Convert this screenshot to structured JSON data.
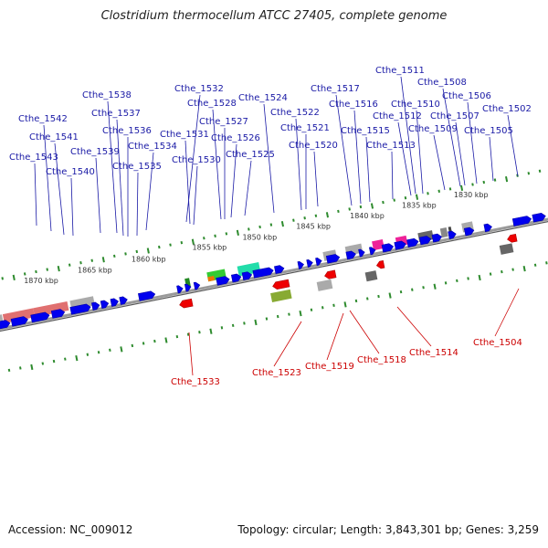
{
  "title": "Clostridium thermocellum ATCC 27405, complete genome",
  "footer": {
    "accession": "Accession: NC_009012",
    "summary": "Topology: circular; Length: 3,843,301 bp; Genes: 3,259"
  },
  "colors": {
    "upper_label": "#1a1aa6",
    "lower_label": "#cc0000",
    "forward_gene": "#0000ee",
    "reverse_gene": "#ee0000",
    "backbone": "#888888",
    "tick": "#2e8b2e"
  },
  "scale_labels": [
    "1870 kbp",
    "1865 kbp",
    "1860 kbp",
    "1855 kbp",
    "1850 kbp",
    "1845 kbp",
    "1840 kbp",
    "1835 kbp",
    "1830 kbp"
  ],
  "upper_genes": [
    "Cthe_1543",
    "Cthe_1542",
    "Cthe_1541",
    "Cthe_1540",
    "Cthe_1539",
    "Cthe_1538",
    "Cthe_1537",
    "Cthe_1536",
    "Cthe_1535",
    "Cthe_1534",
    "Cthe_1532",
    "Cthe_1531",
    "Cthe_1530",
    "Cthe_1528",
    "Cthe_1527",
    "Cthe_1526",
    "Cthe_1525",
    "Cthe_1524",
    "Cthe_1522",
    "Cthe_1521",
    "Cthe_1520",
    "Cthe_1517",
    "Cthe_1516",
    "Cthe_1515",
    "Cthe_1513",
    "Cthe_1512",
    "Cthe_1511",
    "Cthe_1510",
    "Cthe_1509",
    "Cthe_1508",
    "Cthe_1507",
    "Cthe_1506",
    "Cthe_1505",
    "Cthe_1502"
  ],
  "lower_genes": [
    "Cthe_1533",
    "Cthe_1523",
    "Cthe_1519",
    "Cthe_1518",
    "Cthe_1514",
    "Cthe_1504"
  ]
}
